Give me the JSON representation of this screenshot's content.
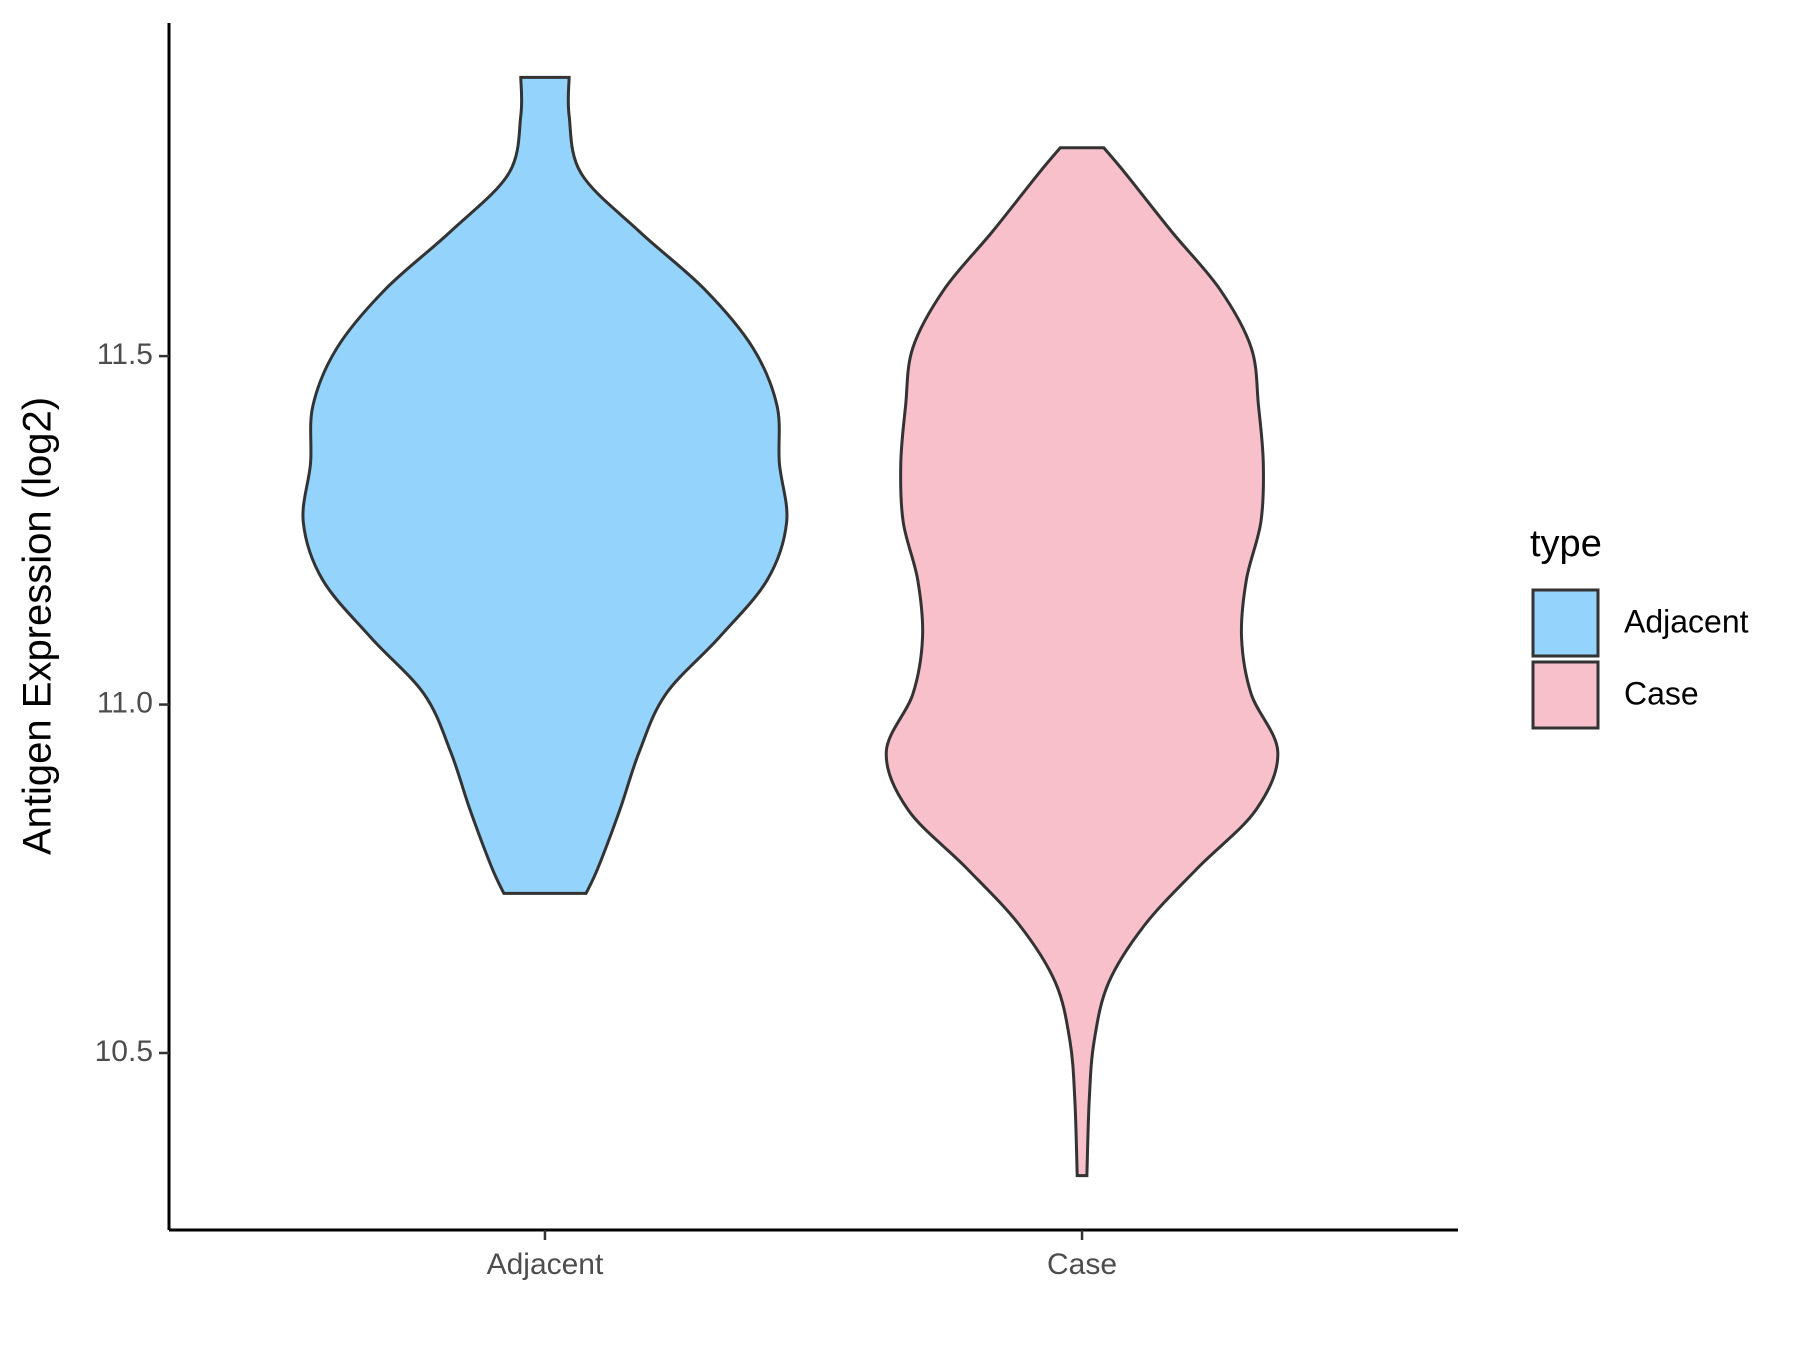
{
  "chart_data": {
    "type": "violin",
    "ylabel": "Antigen Expression (log2)",
    "categories": [
      "Adjacent",
      "Case"
    ],
    "ylim": [
      10.246,
      11.978
    ],
    "yticks": [
      10.5,
      {
        "value": 11.0,
        "label": "11.0"
      },
      11.5
    ],
    "legend_title": "type",
    "legend_position": "right",
    "series": [
      {
        "name": "Adjacent",
        "color": "#93d3fc",
        "y": [
          11.9,
          11.845,
          11.762,
          11.679,
          11.596,
          11.512,
          11.429,
          11.346,
          11.262,
          11.179,
          11.096,
          11.015,
          10.932,
          10.849,
          10.766,
          10.729
        ],
        "density": [
          0.1,
          0.1,
          0.15,
          0.39,
          0.66,
          0.86,
          0.96,
          0.97,
          1.0,
          0.92,
          0.72,
          0.5,
          0.39,
          0.31,
          0.22,
          0.17
        ]
      },
      {
        "name": "Case",
        "color": "#f7c0cb",
        "y": [
          11.799,
          11.762,
          11.679,
          11.596,
          11.512,
          11.429,
          11.346,
          11.262,
          11.179,
          11.096,
          11.015,
          10.932,
          10.849,
          10.766,
          10.684,
          10.601,
          10.517,
          10.434,
          10.324
        ],
        "density": [
          0.09,
          0.18,
          0.37,
          0.57,
          0.7,
          0.73,
          0.75,
          0.74,
          0.68,
          0.66,
          0.7,
          0.81,
          0.72,
          0.48,
          0.26,
          0.11,
          0.05,
          0.03,
          0.02
        ]
      }
    ]
  }
}
